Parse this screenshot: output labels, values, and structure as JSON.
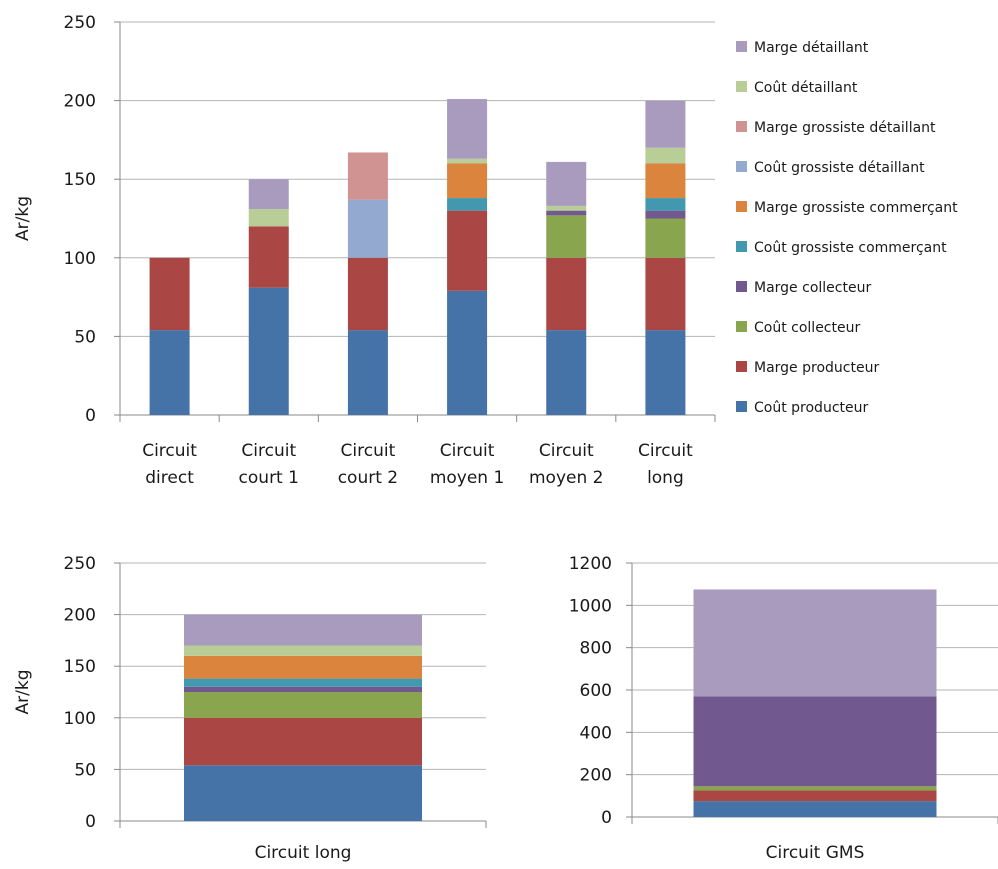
{
  "chart_data": [
    {
      "type": "bar",
      "stacked": true,
      "ylabel": "Ar/kg",
      "ylim": [
        0,
        250
      ],
      "yticks": [
        0,
        50,
        100,
        150,
        200,
        250
      ],
      "grid": true,
      "legend_position": "right",
      "categories": [
        [
          "Circuit",
          "direct"
        ],
        [
          "Circuit",
          "court 1"
        ],
        [
          "Circuit",
          "court 2"
        ],
        [
          "Circuit",
          "moyen 1"
        ],
        [
          "Circuit",
          "moyen 2"
        ],
        [
          "Circuit",
          "long"
        ]
      ],
      "series": [
        {
          "name": "Coût producteur",
          "color": "#4572A7",
          "values": [
            54,
            81,
            54,
            79,
            54,
            54
          ]
        },
        {
          "name": "Marge producteur",
          "color": "#AA4643",
          "values": [
            46,
            39,
            46,
            51,
            46,
            46
          ]
        },
        {
          "name": "Coût collecteur",
          "color": "#89A54E",
          "values": [
            0,
            0,
            0,
            0,
            27,
            25
          ]
        },
        {
          "name": "Marge collecteur",
          "color": "#71588F",
          "values": [
            0,
            0,
            0,
            0,
            3,
            5
          ]
        },
        {
          "name": "Coût grossiste commerçant",
          "color": "#4198AF",
          "values": [
            0,
            0,
            0,
            8,
            0,
            8
          ]
        },
        {
          "name": "Marge grossiste commerçant",
          "color": "#DB843D",
          "values": [
            0,
            0,
            0,
            22,
            0,
            22
          ]
        },
        {
          "name": "Coût grossiste détaillant",
          "color": "#93A9CF",
          "values": [
            0,
            0,
            37,
            0,
            0,
            0
          ]
        },
        {
          "name": "Marge grossiste détaillant",
          "color": "#D19392",
          "values": [
            0,
            0,
            30,
            0,
            0,
            0
          ]
        },
        {
          "name": "Coût détaillant",
          "color": "#B9CD96",
          "values": [
            0,
            11,
            0,
            3,
            3,
            10
          ]
        },
        {
          "name": "Marge détaillant",
          "color": "#A99BBD",
          "values": [
            0,
            19,
            0,
            38,
            28,
            30
          ]
        }
      ]
    },
    {
      "type": "bar",
      "stacked": true,
      "ylabel": "Ar/kg",
      "ylim": [
        0,
        250
      ],
      "yticks": [
        0,
        50,
        100,
        150,
        200,
        250
      ],
      "grid": true,
      "categories": [
        "Circuit long"
      ],
      "series": [
        {
          "color": "#4572A7",
          "values": [
            54
          ]
        },
        {
          "color": "#AA4643",
          "values": [
            46
          ]
        },
        {
          "color": "#89A54E",
          "values": [
            25
          ]
        },
        {
          "color": "#71588F",
          "values": [
            5
          ]
        },
        {
          "color": "#4198AF",
          "values": [
            8
          ]
        },
        {
          "color": "#DB843D",
          "values": [
            22
          ]
        },
        {
          "color": "#B9CD96",
          "values": [
            10
          ]
        },
        {
          "color": "#A99BBD",
          "values": [
            30
          ]
        }
      ]
    },
    {
      "type": "bar",
      "stacked": true,
      "ylim": [
        0,
        1200
      ],
      "yticks": [
        0,
        200,
        400,
        600,
        800,
        1000,
        1200
      ],
      "grid": true,
      "categories": [
        "Circuit GMS"
      ],
      "series": [
        {
          "color": "#4572A7",
          "values": [
            75
          ]
        },
        {
          "color": "#AA4643",
          "values": [
            50
          ]
        },
        {
          "color": "#89A54E",
          "values": [
            20
          ]
        },
        {
          "color": "#71588F",
          "values": [
            425
          ]
        },
        {
          "color": "#A99BBD",
          "values": [
            505
          ]
        }
      ]
    }
  ]
}
